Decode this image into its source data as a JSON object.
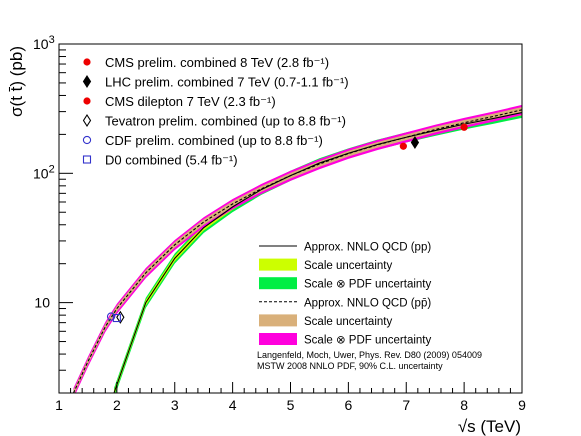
{
  "chart_data": {
    "type": "line",
    "xlabel": "√s (TeV)",
    "ylabel": "σ(t t̄) (pb)",
    "xlim": [
      1,
      9
    ],
    "ylim": [
      2,
      1000
    ],
    "yscale": "log",
    "x_ticks": [
      "1",
      "2",
      "3",
      "4",
      "5",
      "6",
      "7",
      "8",
      "9"
    ],
    "y_ticks": [
      {
        "base": "10",
        "exp": "3"
      },
      {
        "base": "10",
        "exp": "2"
      },
      {
        "base": "10",
        "exp": ""
      }
    ],
    "grid": false,
    "legend_position": "top-left",
    "series": [
      {
        "name": "Approx. NNLO QCD (pp)",
        "style": "solid",
        "color": "#000000",
        "x": [
          1.95,
          2.5,
          3,
          3.5,
          4,
          4.5,
          5,
          5.5,
          6,
          6.5,
          7,
          7.5,
          8,
          8.5,
          9
        ],
        "y": [
          2.0,
          10.0,
          22.0,
          38.0,
          55.0,
          75.0,
          96.0,
          120.0,
          143.0,
          167.0,
          190.0,
          214.0,
          240.0,
          265.0,
          295.0
        ],
        "bands": [
          {
            "name": "Scale uncertainty",
            "color": "#ccff00",
            "rel": 0.05
          },
          {
            "name": "Scale ⊗ PDF uncertainty",
            "color": "#00ee44",
            "rel": 0.09
          }
        ]
      },
      {
        "name": "Approx. NNLO QCD (pp̄)",
        "style": "dashed",
        "color": "#000000",
        "x": [
          1.25,
          1.5,
          1.8,
          2,
          2.5,
          3,
          3.5,
          4,
          4.5,
          5,
          5.5,
          6,
          6.5,
          7,
          7.5,
          8,
          8.5,
          9
        ],
        "y": [
          2.0,
          3.5,
          6.5,
          9.0,
          17.0,
          28.0,
          42.0,
          58.0,
          76.0,
          96.0,
          118.0,
          142.0,
          166.0,
          190.0,
          218.0,
          246.0,
          275.0,
          310.0
        ],
        "bands": [
          {
            "name": "Scale uncertainty",
            "color": "#d9b07a",
            "rel": 0.05
          },
          {
            "name": "Scale ⊗ PDF uncertainty",
            "color": "#ff00dd",
            "rel": 0.09
          }
        ]
      }
    ],
    "markers": [
      {
        "name": "CMS prelim. combined 8 TeV (2.8 fb⁻¹)",
        "symbol": "filled-circle",
        "color": "#ee0000",
        "x": 8.0,
        "y": 227
      },
      {
        "name": "LHC prelim. combined 7 TeV (0.7-1.1 fb⁻¹)",
        "symbol": "filled-diamond",
        "color": "#000000",
        "x": 7.15,
        "y": 173
      },
      {
        "name": "CMS dilepton 7 TeV (2.3 fb⁻¹)",
        "symbol": "filled-circle",
        "color": "#ee0000",
        "x": 6.95,
        "y": 162
      },
      {
        "name": "Tevatron prelim. combined (up to 8.8 fb⁻¹)",
        "symbol": "open-diamond",
        "color": "#000000",
        "x": 2.06,
        "y": 7.7
      },
      {
        "name": "CDF prelim. combined (up to 8.8 fb⁻¹)",
        "symbol": "open-circle",
        "color": "#3333cc",
        "x": 1.9,
        "y": 7.8
      },
      {
        "name": "D0 combined (5.4 fb⁻¹)",
        "symbol": "open-square",
        "color": "#3333cc",
        "x": 2.0,
        "y": 7.6
      }
    ],
    "legend_markers": [
      "CMS prelim. combined 8 TeV (2.8 fb⁻¹)",
      "LHC prelim. combined 7 TeV (0.7-1.1 fb⁻¹)",
      "CMS dilepton 7 TeV (2.3 fb⁻¹)",
      "Tevatron prelim. combined (up to 8.8 fb⁻¹)",
      "CDF prelim. combined (up to 8.8 fb⁻¹)",
      "D0 combined (5.4 fb⁻¹)"
    ],
    "legend_curves": [
      {
        "label": "Approx. NNLO QCD (pp)",
        "kind": "solid-line",
        "color": "#000000"
      },
      {
        "label": "Scale uncertainty",
        "kind": "box",
        "color": "#ccff00"
      },
      {
        "label": "Scale ⊗ PDF uncertainty",
        "kind": "box",
        "color": "#00ee44"
      },
      {
        "label": "Approx. NNLO QCD (pp̄)",
        "kind": "dashed-line",
        "color": "#000000"
      },
      {
        "label": "Scale uncertainty",
        "kind": "box",
        "color": "#d9b07a"
      },
      {
        "label": "Scale ⊗ PDF uncertainty",
        "kind": "box",
        "color": "#ff00dd"
      }
    ],
    "annotations": [
      "Langenfeld, Moch, Uwer, Phys. Rev. D80 (2009) 054009",
      "MSTW 2008 NNLO PDF, 90% C.L. uncertainty"
    ]
  }
}
